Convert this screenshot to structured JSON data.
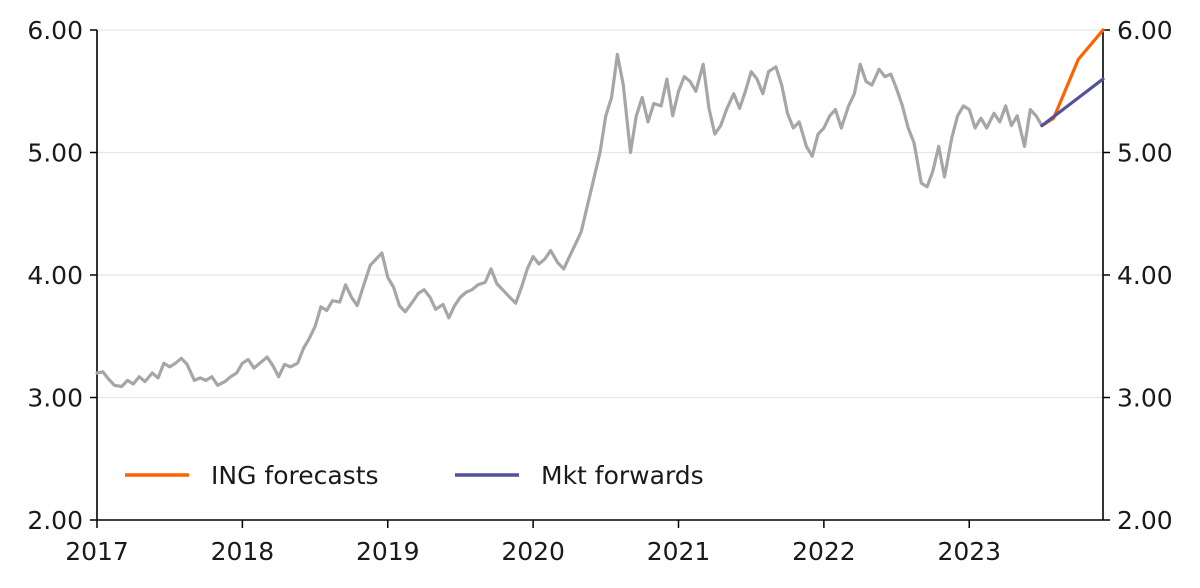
{
  "chart_data": {
    "type": "line",
    "title": "",
    "xlabel": "",
    "ylabel": "",
    "xlim": [
      2017.0,
      2023.92
    ],
    "ylim": [
      2.0,
      6.0
    ],
    "x_ticks": [
      2017,
      2018,
      2019,
      2020,
      2021,
      2022,
      2023
    ],
    "x_tick_labels": [
      "2017",
      "2018",
      "2019",
      "2020",
      "2021",
      "2022",
      "2023"
    ],
    "y_ticks": [
      2.0,
      3.0,
      4.0,
      5.0,
      6.0
    ],
    "y_tick_labels": [
      "2.00",
      "3.00",
      "4.00",
      "5.00",
      "6.00"
    ],
    "dual_y_axis": true,
    "grid": "horizontal",
    "legend_placement": "bottom-left",
    "series": [
      {
        "key": "history",
        "color": "#a6a6a6",
        "in_legend": false,
        "points": [
          [
            2017.0,
            3.2
          ],
          [
            2017.04,
            3.21
          ],
          [
            2017.08,
            3.15
          ],
          [
            2017.12,
            3.1
          ],
          [
            2017.17,
            3.09
          ],
          [
            2017.21,
            3.14
          ],
          [
            2017.25,
            3.11
          ],
          [
            2017.29,
            3.17
          ],
          [
            2017.33,
            3.13
          ],
          [
            2017.38,
            3.2
          ],
          [
            2017.42,
            3.16
          ],
          [
            2017.46,
            3.28
          ],
          [
            2017.5,
            3.25
          ],
          [
            2017.54,
            3.28
          ],
          [
            2017.58,
            3.32
          ],
          [
            2017.62,
            3.27
          ],
          [
            2017.67,
            3.14
          ],
          [
            2017.71,
            3.16
          ],
          [
            2017.75,
            3.14
          ],
          [
            2017.79,
            3.17
          ],
          [
            2017.83,
            3.1
          ],
          [
            2017.88,
            3.13
          ],
          [
            2017.92,
            3.17
          ],
          [
            2017.96,
            3.2
          ],
          [
            2018.0,
            3.28
          ],
          [
            2018.04,
            3.31
          ],
          [
            2018.08,
            3.24
          ],
          [
            2018.12,
            3.28
          ],
          [
            2018.17,
            3.33
          ],
          [
            2018.21,
            3.26
          ],
          [
            2018.25,
            3.17
          ],
          [
            2018.29,
            3.27
          ],
          [
            2018.33,
            3.25
          ],
          [
            2018.38,
            3.28
          ],
          [
            2018.42,
            3.4
          ],
          [
            2018.46,
            3.48
          ],
          [
            2018.5,
            3.58
          ],
          [
            2018.54,
            3.74
          ],
          [
            2018.58,
            3.71
          ],
          [
            2018.62,
            3.79
          ],
          [
            2018.67,
            3.78
          ],
          [
            2018.71,
            3.92
          ],
          [
            2018.75,
            3.82
          ],
          [
            2018.79,
            3.75
          ],
          [
            2018.83,
            3.9
          ],
          [
            2018.88,
            4.08
          ],
          [
            2018.92,
            4.13
          ],
          [
            2018.96,
            4.18
          ],
          [
            2019.0,
            3.98
          ],
          [
            2019.04,
            3.9
          ],
          [
            2019.08,
            3.75
          ],
          [
            2019.12,
            3.7
          ],
          [
            2019.17,
            3.78
          ],
          [
            2019.21,
            3.85
          ],
          [
            2019.25,
            3.88
          ],
          [
            2019.29,
            3.82
          ],
          [
            2019.33,
            3.72
          ],
          [
            2019.38,
            3.76
          ],
          [
            2019.42,
            3.65
          ],
          [
            2019.46,
            3.75
          ],
          [
            2019.5,
            3.82
          ],
          [
            2019.54,
            3.86
          ],
          [
            2019.58,
            3.88
          ],
          [
            2019.62,
            3.92
          ],
          [
            2019.67,
            3.94
          ],
          [
            2019.71,
            4.05
          ],
          [
            2019.75,
            3.93
          ],
          [
            2019.79,
            3.88
          ],
          [
            2019.83,
            3.83
          ],
          [
            2019.88,
            3.77
          ],
          [
            2019.92,
            3.9
          ],
          [
            2019.96,
            4.05
          ],
          [
            2020.0,
            4.15
          ],
          [
            2020.04,
            4.09
          ],
          [
            2020.08,
            4.13
          ],
          [
            2020.12,
            4.2
          ],
          [
            2020.17,
            4.1
          ],
          [
            2020.21,
            4.05
          ],
          [
            2020.25,
            4.15
          ],
          [
            2020.29,
            4.25
          ],
          [
            2020.33,
            4.35
          ],
          [
            2020.38,
            4.6
          ],
          [
            2020.42,
            4.8
          ],
          [
            2020.46,
            5.0
          ],
          [
            2020.5,
            5.3
          ],
          [
            2020.54,
            5.45
          ],
          [
            2020.58,
            5.8
          ],
          [
            2020.62,
            5.55
          ],
          [
            2020.67,
            5.0
          ],
          [
            2020.71,
            5.3
          ],
          [
            2020.75,
            5.45
          ],
          [
            2020.79,
            5.25
          ],
          [
            2020.83,
            5.4
          ],
          [
            2020.88,
            5.38
          ],
          [
            2020.92,
            5.6
          ],
          [
            2020.96,
            5.3
          ],
          [
            2021.0,
            5.5
          ],
          [
            2021.04,
            5.62
          ],
          [
            2021.08,
            5.58
          ],
          [
            2021.12,
            5.5
          ],
          [
            2021.17,
            5.72
          ],
          [
            2021.21,
            5.36
          ],
          [
            2021.25,
            5.15
          ],
          [
            2021.29,
            5.22
          ],
          [
            2021.33,
            5.35
          ],
          [
            2021.38,
            5.48
          ],
          [
            2021.42,
            5.36
          ],
          [
            2021.46,
            5.5
          ],
          [
            2021.5,
            5.66
          ],
          [
            2021.54,
            5.6
          ],
          [
            2021.58,
            5.48
          ],
          [
            2021.62,
            5.66
          ],
          [
            2021.67,
            5.7
          ],
          [
            2021.71,
            5.55
          ],
          [
            2021.75,
            5.32
          ],
          [
            2021.79,
            5.2
          ],
          [
            2021.83,
            5.25
          ],
          [
            2021.88,
            5.05
          ],
          [
            2021.92,
            4.97
          ],
          [
            2021.96,
            5.15
          ],
          [
            2022.0,
            5.2
          ],
          [
            2022.04,
            5.3
          ],
          [
            2022.08,
            5.35
          ],
          [
            2022.12,
            5.2
          ],
          [
            2022.17,
            5.38
          ],
          [
            2022.21,
            5.48
          ],
          [
            2022.25,
            5.72
          ],
          [
            2022.29,
            5.58
          ],
          [
            2022.33,
            5.55
          ],
          [
            2022.38,
            5.68
          ],
          [
            2022.42,
            5.62
          ],
          [
            2022.46,
            5.64
          ],
          [
            2022.5,
            5.52
          ],
          [
            2022.54,
            5.38
          ],
          [
            2022.58,
            5.2
          ],
          [
            2022.62,
            5.08
          ],
          [
            2022.67,
            4.75
          ],
          [
            2022.71,
            4.72
          ],
          [
            2022.75,
            4.85
          ],
          [
            2022.79,
            5.05
          ],
          [
            2022.83,
            4.8
          ],
          [
            2022.88,
            5.12
          ],
          [
            2022.92,
            5.3
          ],
          [
            2022.96,
            5.38
          ],
          [
            2023.0,
            5.35
          ],
          [
            2023.04,
            5.2
          ],
          [
            2023.08,
            5.28
          ],
          [
            2023.12,
            5.2
          ],
          [
            2023.17,
            5.32
          ],
          [
            2023.21,
            5.25
          ],
          [
            2023.25,
            5.38
          ],
          [
            2023.29,
            5.22
          ],
          [
            2023.33,
            5.3
          ],
          [
            2023.38,
            5.05
          ],
          [
            2023.42,
            5.35
          ],
          [
            2023.46,
            5.3
          ],
          [
            2023.5,
            5.22
          ]
        ]
      },
      {
        "key": "ing",
        "name": "ING forecasts",
        "color": "#ff6200",
        "in_legend": true,
        "points": [
          [
            2023.5,
            5.22
          ],
          [
            2023.58,
            5.28
          ],
          [
            2023.75,
            5.76
          ],
          [
            2023.92,
            6.0
          ]
        ]
      },
      {
        "key": "mkt",
        "name": "Mkt forwards",
        "color": "#525199",
        "in_legend": true,
        "points": [
          [
            2023.5,
            5.22
          ],
          [
            2023.92,
            5.6
          ]
        ]
      }
    ]
  }
}
